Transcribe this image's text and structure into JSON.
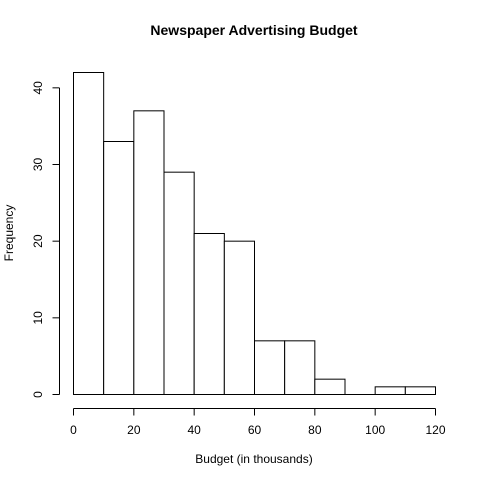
{
  "chart_data": {
    "type": "bar",
    "title": "Newspaper Advertising Budget",
    "xlabel": "Budget (in thousands)",
    "ylabel": "Frequency",
    "bins": [
      {
        "start": 0,
        "end": 10,
        "count": 42
      },
      {
        "start": 10,
        "end": 20,
        "count": 33
      },
      {
        "start": 20,
        "end": 30,
        "count": 37
      },
      {
        "start": 30,
        "end": 40,
        "count": 29
      },
      {
        "start": 40,
        "end": 50,
        "count": 21
      },
      {
        "start": 50,
        "end": 60,
        "count": 20
      },
      {
        "start": 60,
        "end": 70,
        "count": 7
      },
      {
        "start": 70,
        "end": 80,
        "count": 7
      },
      {
        "start": 80,
        "end": 90,
        "count": 2
      },
      {
        "start": 90,
        "end": 100,
        "count": 0
      },
      {
        "start": 100,
        "end": 110,
        "count": 1
      },
      {
        "start": 110,
        "end": 120,
        "count": 1
      }
    ],
    "xlim": [
      0,
      120
    ],
    "ylim": [
      0,
      42
    ],
    "xticks": [
      "0",
      "20",
      "40",
      "60",
      "80",
      "100",
      "120"
    ],
    "yticks": [
      "0",
      "10",
      "20",
      "30",
      "40"
    ],
    "grid": false
  }
}
